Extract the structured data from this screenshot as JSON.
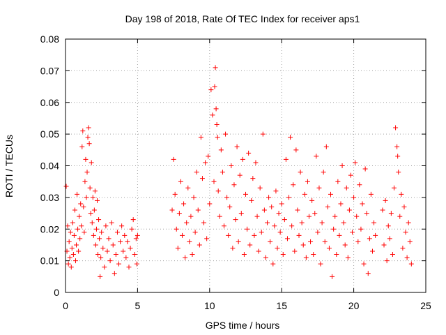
{
  "chart_data": {
    "type": "scatter",
    "title": "Day 198 of 2018, Rate Of TEC Index for receiver aps1",
    "xlabel": "GPS time / hours",
    "ylabel": "ROTI / TECUs",
    "xlim": [
      0,
      25
    ],
    "ylim": [
      0,
      0.08
    ],
    "xticks": [
      0,
      5,
      10,
      15,
      20,
      25
    ],
    "xtick_labels": [
      "0",
      "5",
      "10",
      "15",
      "20",
      "25"
    ],
    "yticks": [
      0,
      0.01,
      0.02,
      0.03,
      0.04,
      0.05,
      0.06,
      0.07,
      0.08
    ],
    "ytick_labels": [
      "0",
      "0.01",
      "0.02",
      "0.03",
      "0.04",
      "0.05",
      "0.06",
      "0.07",
      "0.08"
    ],
    "grid": true,
    "marker": "+",
    "color": "#ff0000",
    "series": [
      {
        "name": "ROTI",
        "points": [
          [
            0.05,
            0.0335
          ],
          [
            0.1,
            0.013
          ],
          [
            0.15,
            0.021
          ],
          [
            0.2,
            0.009
          ],
          [
            0.25,
            0.016
          ],
          [
            0.3,
            0.011
          ],
          [
            0.35,
            0.019
          ],
          [
            0.4,
            0.008
          ],
          [
            0.45,
            0.014
          ],
          [
            0.5,
            0.022
          ],
          [
            0.55,
            0.012
          ],
          [
            0.6,
            0.018
          ],
          [
            0.65,
            0.026
          ],
          [
            0.7,
            0.01
          ],
          [
            0.75,
            0.015
          ],
          [
            0.8,
            0.031
          ],
          [
            0.85,
            0.02
          ],
          [
            0.9,
            0.013
          ],
          [
            0.95,
            0.024
          ],
          [
            1.0,
            0.017
          ],
          [
            1.05,
            0.028
          ],
          [
            1.1,
            0.021
          ],
          [
            1.15,
            0.046
          ],
          [
            1.2,
            0.051
          ],
          [
            1.25,
            0.027
          ],
          [
            1.3,
            0.019
          ],
          [
            1.35,
            0.035
          ],
          [
            1.4,
            0.042
          ],
          [
            1.45,
            0.03
          ],
          [
            1.5,
            0.038
          ],
          [
            1.55,
            0.049
          ],
          [
            1.6,
            0.052
          ],
          [
            1.65,
            0.047
          ],
          [
            1.7,
            0.033
          ],
          [
            1.75,
            0.025
          ],
          [
            1.8,
            0.041
          ],
          [
            1.85,
            0.022
          ],
          [
            1.9,
            0.03
          ],
          [
            1.95,
            0.018
          ],
          [
            2.0,
            0.026
          ],
          [
            2.05,
            0.032
          ],
          [
            2.1,
            0.015
          ],
          [
            2.15,
            0.02
          ],
          [
            2.2,
            0.029
          ],
          [
            2.25,
            0.012
          ],
          [
            2.3,
            0.023
          ],
          [
            2.35,
            0.017
          ],
          [
            2.4,
            0.005
          ],
          [
            2.45,
            0.011
          ],
          [
            2.5,
            0.019
          ],
          [
            2.6,
            0.014
          ],
          [
            2.7,
            0.008
          ],
          [
            2.8,
            0.021
          ],
          [
            2.9,
            0.013
          ],
          [
            3.0,
            0.017
          ],
          [
            3.1,
            0.01
          ],
          [
            3.2,
            0.022
          ],
          [
            3.3,
            0.015
          ],
          [
            3.4,
            0.006
          ],
          [
            3.5,
            0.012
          ],
          [
            3.6,
            0.019
          ],
          [
            3.7,
            0.009
          ],
          [
            3.8,
            0.016
          ],
          [
            3.9,
            0.021
          ],
          [
            4.0,
            0.013
          ],
          [
            4.1,
            0.018
          ],
          [
            4.2,
            0.011
          ],
          [
            4.3,
            0.016
          ],
          [
            4.4,
            0.008
          ],
          [
            4.5,
            0.014
          ],
          [
            4.6,
            0.02
          ],
          [
            4.7,
            0.023
          ],
          [
            4.8,
            0.012
          ],
          [
            4.9,
            0.017
          ],
          [
            4.95,
            0.009
          ],
          [
            5.0,
            0.018
          ],
          [
            7.4,
            0.026
          ],
          [
            7.5,
            0.042
          ],
          [
            7.6,
            0.031
          ],
          [
            7.7,
            0.02
          ],
          [
            7.8,
            0.014
          ],
          [
            7.9,
            0.025
          ],
          [
            8.0,
            0.035
          ],
          [
            8.1,
            0.018
          ],
          [
            8.2,
            0.028
          ],
          [
            8.3,
            0.011
          ],
          [
            8.4,
            0.022
          ],
          [
            8.5,
            0.033
          ],
          [
            8.6,
            0.016
          ],
          [
            8.7,
            0.024
          ],
          [
            8.8,
            0.012
          ],
          [
            8.9,
            0.03
          ],
          [
            9.0,
            0.019
          ],
          [
            9.1,
            0.038
          ],
          [
            9.2,
            0.026
          ],
          [
            9.3,
            0.015
          ],
          [
            9.4,
            0.049
          ],
          [
            9.5,
            0.036
          ],
          [
            9.6,
            0.022
          ],
          [
            9.7,
            0.041
          ],
          [
            9.8,
            0.017
          ],
          [
            9.9,
            0.043
          ],
          [
            10.0,
            0.028
          ],
          [
            10.1,
            0.064
          ],
          [
            10.2,
            0.056
          ],
          [
            10.3,
            0.035
          ],
          [
            10.35,
            0.065
          ],
          [
            10.4,
            0.071
          ],
          [
            10.45,
            0.058
          ],
          [
            10.5,
            0.053
          ],
          [
            10.55,
            0.049
          ],
          [
            10.6,
            0.032
          ],
          [
            10.7,
            0.024
          ],
          [
            10.8,
            0.045
          ],
          [
            10.9,
            0.038
          ],
          [
            11.0,
            0.021
          ],
          [
            11.1,
            0.05
          ],
          [
            11.2,
            0.03
          ],
          [
            11.3,
            0.018
          ],
          [
            11.4,
            0.027
          ],
          [
            11.5,
            0.04
          ],
          [
            11.6,
            0.014
          ],
          [
            11.7,
            0.034
          ],
          [
            11.8,
            0.023
          ],
          [
            11.9,
            0.046
          ],
          [
            12.0,
            0.016
          ],
          [
            12.1,
            0.037
          ],
          [
            12.2,
            0.025
          ],
          [
            12.3,
            0.042
          ],
          [
            12.4,
            0.012
          ],
          [
            12.5,
            0.031
          ],
          [
            12.6,
            0.02
          ],
          [
            12.7,
            0.044
          ],
          [
            12.8,
            0.015
          ],
          [
            12.9,
            0.029
          ],
          [
            13.0,
            0.036
          ],
          [
            13.1,
            0.018
          ],
          [
            13.2,
            0.041
          ],
          [
            13.3,
            0.024
          ],
          [
            13.4,
            0.013
          ],
          [
            13.5,
            0.033
          ],
          [
            13.6,
            0.019
          ],
          [
            13.7,
            0.05
          ],
          [
            13.8,
            0.026
          ],
          [
            13.9,
            0.011
          ],
          [
            14.0,
            0.022
          ],
          [
            14.1,
            0.03
          ],
          [
            14.2,
            0.016
          ],
          [
            14.3,
            0.027
          ],
          [
            14.4,
            0.009
          ],
          [
            14.5,
            0.021
          ],
          [
            14.6,
            0.032
          ],
          [
            14.7,
            0.014
          ],
          [
            14.8,
            0.025
          ],
          [
            14.9,
            0.019
          ],
          [
            15.0,
            0.028
          ],
          [
            15.1,
            0.012
          ],
          [
            15.2,
            0.023
          ],
          [
            15.3,
            0.042
          ],
          [
            15.4,
            0.017
          ],
          [
            15.5,
            0.03
          ],
          [
            15.6,
            0.049
          ],
          [
            15.7,
            0.021
          ],
          [
            15.8,
            0.034
          ],
          [
            15.9,
            0.013
          ],
          [
            16.0,
            0.045
          ],
          [
            16.1,
            0.026
          ],
          [
            16.2,
            0.018
          ],
          [
            16.3,
            0.038
          ],
          [
            16.4,
            0.022
          ],
          [
            16.5,
            0.015
          ],
          [
            16.6,
            0.031
          ],
          [
            16.7,
            0.011
          ],
          [
            16.8,
            0.035
          ],
          [
            16.9,
            0.024
          ],
          [
            17.0,
            0.016
          ],
          [
            17.1,
            0.029
          ],
          [
            17.2,
            0.012
          ],
          [
            17.3,
            0.025
          ],
          [
            17.4,
            0.043
          ],
          [
            17.5,
            0.019
          ],
          [
            17.6,
            0.033
          ],
          [
            17.7,
            0.009
          ],
          [
            17.8,
            0.022
          ],
          [
            17.9,
            0.038
          ],
          [
            18.0,
            0.016
          ],
          [
            18.1,
            0.046
          ],
          [
            18.2,
            0.027
          ],
          [
            18.3,
            0.014
          ],
          [
            18.4,
            0.031
          ],
          [
            18.5,
            0.005
          ],
          [
            18.6,
            0.02
          ],
          [
            18.7,
            0.024
          ],
          [
            18.8,
            0.012
          ],
          [
            18.9,
            0.035
          ],
          [
            19.0,
            0.018
          ],
          [
            19.1,
            0.028
          ],
          [
            19.2,
            0.04
          ],
          [
            19.3,
            0.022
          ],
          [
            19.4,
            0.015
          ],
          [
            19.5,
            0.033
          ],
          [
            19.6,
            0.011
          ],
          [
            19.7,
            0.026
          ],
          [
            19.8,
            0.037
          ],
          [
            19.9,
            0.019
          ],
          [
            20.0,
            0.03
          ],
          [
            20.1,
            0.041
          ],
          [
            20.2,
            0.024
          ],
          [
            20.3,
            0.016
          ],
          [
            20.4,
            0.034
          ],
          [
            20.5,
            0.02
          ],
          [
            20.6,
            0.028
          ],
          [
            20.7,
            0.009
          ],
          [
            20.8,
            0.039
          ],
          [
            20.9,
            0.025
          ],
          [
            21.0,
            0.006
          ],
          [
            21.1,
            0.017
          ],
          [
            21.2,
            0.031
          ],
          [
            21.3,
            0.013
          ],
          [
            21.4,
            0.022
          ],
          [
            21.5,
            0.018
          ],
          [
            22.0,
            0.026
          ],
          [
            22.1,
            0.015
          ],
          [
            22.2,
            0.029
          ],
          [
            22.3,
            0.01
          ],
          [
            22.4,
            0.021
          ],
          [
            22.5,
            0.017
          ],
          [
            22.6,
            0.025
          ],
          [
            22.7,
            0.012
          ],
          [
            22.8,
            0.033
          ],
          [
            22.9,
            0.052
          ],
          [
            23.0,
            0.046
          ],
          [
            23.05,
            0.043
          ],
          [
            23.1,
            0.038
          ],
          [
            23.2,
            0.024
          ],
          [
            23.3,
            0.031
          ],
          [
            23.4,
            0.014
          ],
          [
            23.5,
            0.027
          ],
          [
            23.6,
            0.019
          ],
          [
            23.7,
            0.011
          ],
          [
            23.8,
            0.022
          ],
          [
            23.9,
            0.016
          ],
          [
            24.0,
            0.009
          ]
        ]
      }
    ]
  }
}
